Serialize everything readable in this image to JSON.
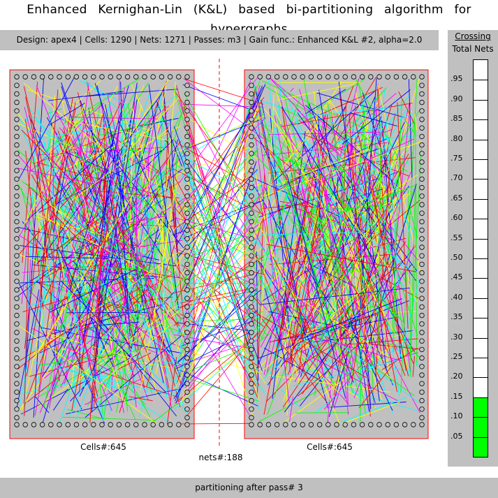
{
  "window": {
    "title": "Enhanced Kernighan-Lin (K&L) based bi-partitioning algorithm for hypergraphs"
  },
  "info": {
    "text": "Design: apex4  |  Cells: 1290  |  Nets: 1271  |  Passes: m3  |  Gain func.: Enhanced K&L #2, alpha=2.0"
  },
  "partitions": {
    "left_caption": "Cells#:645",
    "right_caption": "Cells#:645",
    "cut_caption": "nets#:188"
  },
  "meter": {
    "title": "Crossing",
    "subtitle": "Total Nets",
    "ticks": [
      ".95",
      ".90",
      ".85",
      ".80",
      ".75",
      ".70",
      ".65",
      ".60",
      ".55",
      ".50",
      ".45",
      ".40",
      ".35",
      ".30",
      ".25",
      ".20",
      ".15",
      ".10",
      ".05"
    ],
    "fill_fraction": 0.148,
    "fill_color": "#00ff00"
  },
  "status": {
    "text": "partitioning after pass# 3"
  },
  "colors": {
    "net_palette": [
      "#ff0000",
      "#00ff00",
      "#0000ff",
      "#ffff00",
      "#00ffff",
      "#ff00ff",
      "#000000",
      "#008000",
      "#808000"
    ],
    "partition_border": "#ff0000",
    "partition_fill": "#c0c0c0",
    "cut_line": "#ff0000",
    "panel_bg": "#c0c0c0"
  }
}
